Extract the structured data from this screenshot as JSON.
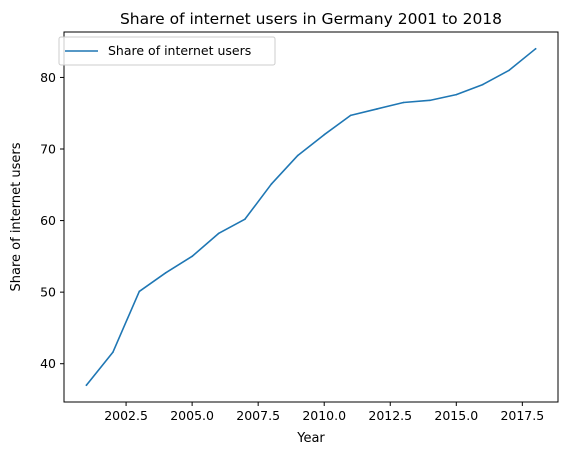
{
  "chart_data": {
    "type": "line",
    "title": "Share of internet users in Germany 2001 to 2018",
    "xlabel": "Year",
    "ylabel": "Share of internet users",
    "xlim": [
      2000.15,
      2018.85
    ],
    "ylim": [
      34.65,
      86.35
    ],
    "xticks": [
      {
        "value": 2002.5,
        "label": "2002.5"
      },
      {
        "value": 2005.0,
        "label": "2005.0"
      },
      {
        "value": 2007.5,
        "label": "2007.5"
      },
      {
        "value": 2010.0,
        "label": "2010.0"
      },
      {
        "value": 2012.5,
        "label": "2012.5"
      },
      {
        "value": 2015.0,
        "label": "2015.0"
      },
      {
        "value": 2017.5,
        "label": "2017.5"
      }
    ],
    "yticks": [
      {
        "value": 40,
        "label": "40"
      },
      {
        "value": 50,
        "label": "50"
      },
      {
        "value": 60,
        "label": "60"
      },
      {
        "value": 70,
        "label": "70"
      },
      {
        "value": 80,
        "label": "80"
      }
    ],
    "grid": false,
    "legend_position": "top-left",
    "series": [
      {
        "name": "Share of internet users",
        "color": "#1f77b4",
        "x": [
          2001,
          2002,
          2003,
          2004,
          2005,
          2006,
          2007,
          2008,
          2009,
          2010,
          2011,
          2012,
          2013,
          2014,
          2015,
          2016,
          2017,
          2018
        ],
        "y": [
          37.0,
          41.6,
          50.1,
          52.7,
          55.0,
          58.2,
          60.2,
          65.1,
          69.1,
          72.0,
          74.7,
          75.6,
          76.5,
          76.8,
          77.6,
          79.0,
          81.0,
          84.0
        ]
      }
    ]
  }
}
